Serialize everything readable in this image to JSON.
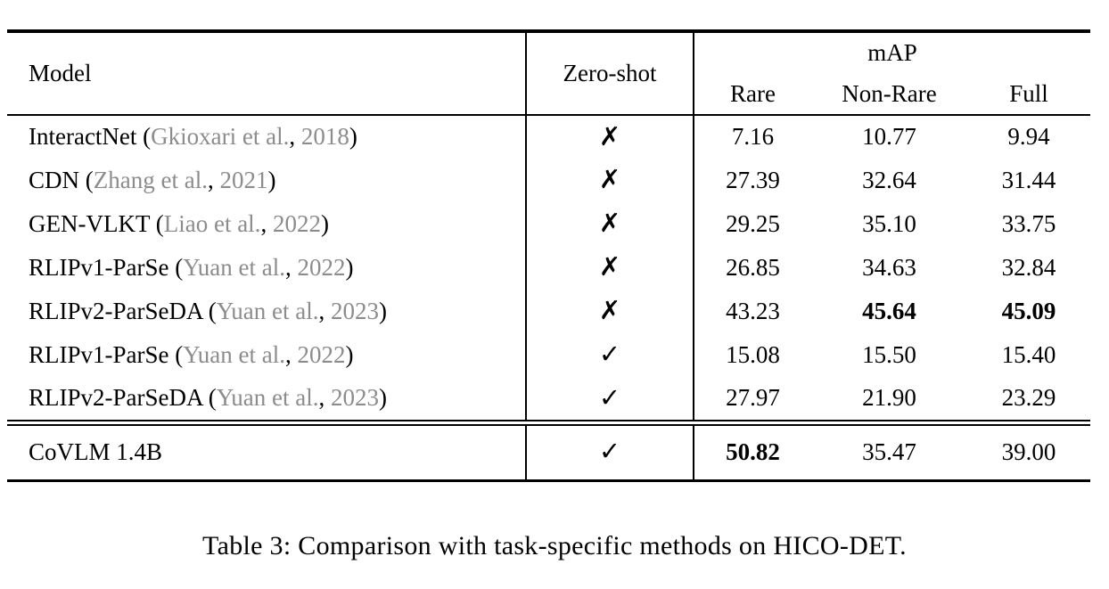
{
  "table": {
    "header": {
      "model": "Model",
      "zero_shot": "Zero-shot",
      "map_group": "mAP",
      "sub_columns": [
        "Rare",
        "Non-Rare",
        "Full"
      ]
    },
    "rows": [
      {
        "model": "InteractNet",
        "cite_authors": "Gkioxari et al.",
        "cite_year": "2018",
        "zero_shot": "no",
        "rare": "7.16",
        "non_rare": "10.77",
        "full": "9.94"
      },
      {
        "model": "CDN",
        "cite_authors": "Zhang et al.",
        "cite_year": "2021",
        "zero_shot": "no",
        "rare": "27.39",
        "non_rare": "32.64",
        "full": "31.44"
      },
      {
        "model": "GEN-VLKT",
        "cite_authors": "Liao et al.",
        "cite_year": "2022",
        "zero_shot": "no",
        "rare": "29.25",
        "non_rare": "35.10",
        "full": "33.75"
      },
      {
        "model": "RLIPv1-ParSe",
        "cite_authors": "Yuan et al.",
        "cite_year": "2022",
        "zero_shot": "no",
        "rare": "26.85",
        "non_rare": "34.63",
        "full": "32.84"
      },
      {
        "model": "RLIPv2-ParSeDA",
        "cite_authors": "Yuan et al.",
        "cite_year": "2023",
        "zero_shot": "no",
        "rare": "43.23",
        "non_rare": "45.64",
        "full": "45.09"
      },
      {
        "model": "RLIPv1-ParSe",
        "cite_authors": "Yuan et al.",
        "cite_year": "2022",
        "zero_shot": "yes",
        "rare": "15.08",
        "non_rare": "15.50",
        "full": "15.40"
      },
      {
        "model": "RLIPv2-ParSeDA",
        "cite_authors": "Yuan et al.",
        "cite_year": "2023",
        "zero_shot": "yes",
        "rare": "27.97",
        "non_rare": "21.90",
        "full": "23.29"
      }
    ],
    "final_row": {
      "model": "CoVLM 1.4B",
      "zero_shot": "yes",
      "rare": "50.82",
      "non_rare": "35.47",
      "full": "39.00"
    }
  },
  "icons": {
    "cross": "✗",
    "check": "✓"
  },
  "punctuation": {
    "open_paren": "(",
    "comma": ",",
    "close_paren": ")"
  },
  "colors": {
    "citation_gray": "#8c8c8c",
    "rule_black": "#000000"
  },
  "caption": "Table 3: Comparison with task-specific methods on HICO-DET."
}
